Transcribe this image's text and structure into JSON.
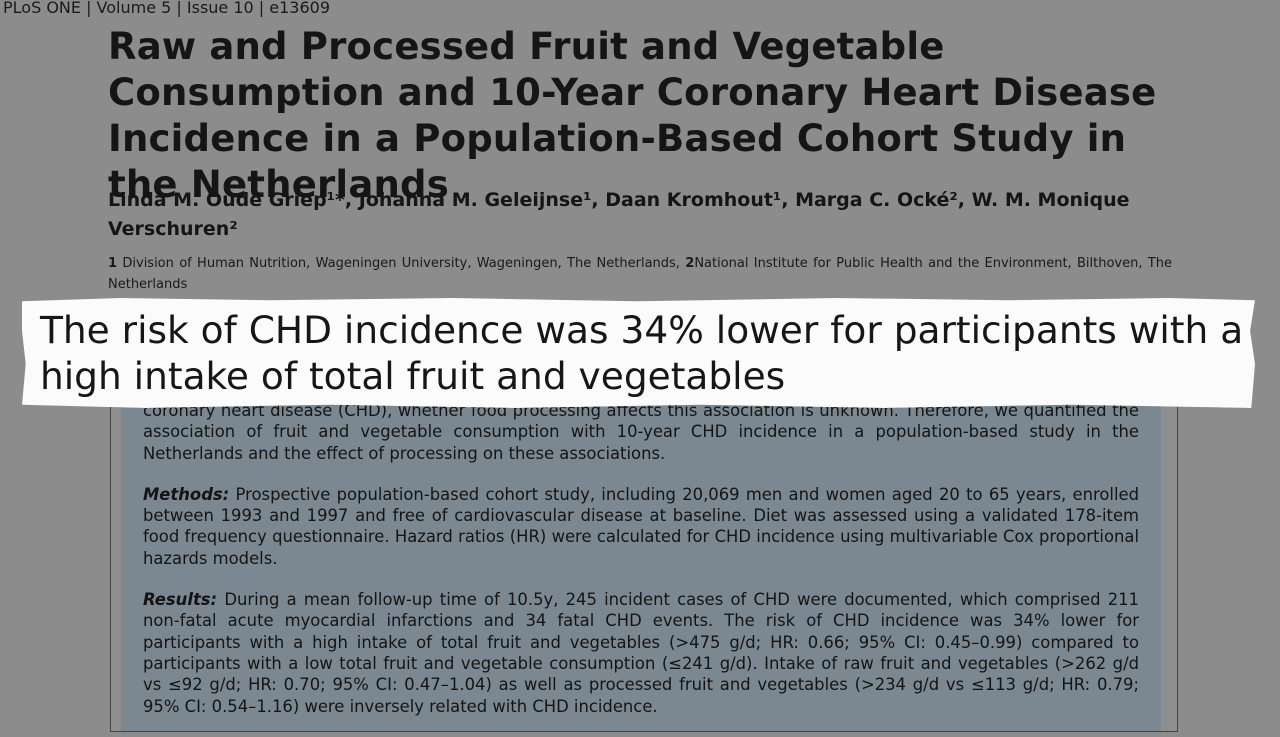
{
  "header": {
    "citation": "PLoS ONE | Volume 5 | Issue 10 | e13609"
  },
  "article": {
    "title": "Raw and Processed Fruit and Vegetable Consumption and 10-Year Coronary Heart Disease Incidence in a Population-Based Cohort Study in the Netherlands",
    "authors": "Linda M. Oude Griep¹*, Johanna M. Geleijnse¹, Daan Kromhout¹, Marga C. Ocké², W. M. Monique Verschuren²",
    "affiliations": [
      {
        "number": "1",
        "text": "Division of Human Nutrition, Wageningen University, Wageningen, The Netherlands,"
      },
      {
        "number": "2",
        "text": "National Institute for Public Health and the Environment, Bilthoven, The Netherlands"
      }
    ],
    "abstract": {
      "background": "coronary heart disease (CHD), whether food processing affects this association is unknown. Therefore, we quantified the association of fruit and vegetable consumption with 10-year CHD incidence in a population-based study in the Netherlands and the effect of processing on these associations.",
      "methods": {
        "label": "Methods:",
        "text": "Prospective population-based cohort study, including 20,069 men and women aged 20 to 65 years, enrolled between 1993 and 1997 and free of cardiovascular disease at baseline. Diet was assessed using a validated 178-item food frequency questionnaire. Hazard ratios (HR) were calculated for CHD incidence using multivariable Cox proportional hazards models."
      },
      "results": {
        "label": "Results:",
        "text": "During a mean follow-up time of 10.5y, 245 incident cases of CHD were documented, which comprised 211 non-fatal acute myocardial infarctions and 34 fatal CHD events. The risk of CHD incidence was 34% lower for participants with a high intake of total fruit and vegetables (>475 g/d; HR: 0.66; 95% CI: 0.45–0.99) compared to participants with a low total fruit and vegetable consumption (≤241 g/d). Intake of raw fruit and vegetables (>262 g/d vs ≤92 g/d; HR: 0.70; 95% CI: 0.47–1.04) as well as processed fruit and vegetables (>234 g/d vs ≤113 g/d; HR: 0.79; 95% CI: 0.54–1.16) were inversely related with CHD incidence."
      }
    }
  },
  "caption": {
    "text": "The risk of CHD incidence was 34% lower for participants with a high intake of total fruit and vegetables"
  }
}
